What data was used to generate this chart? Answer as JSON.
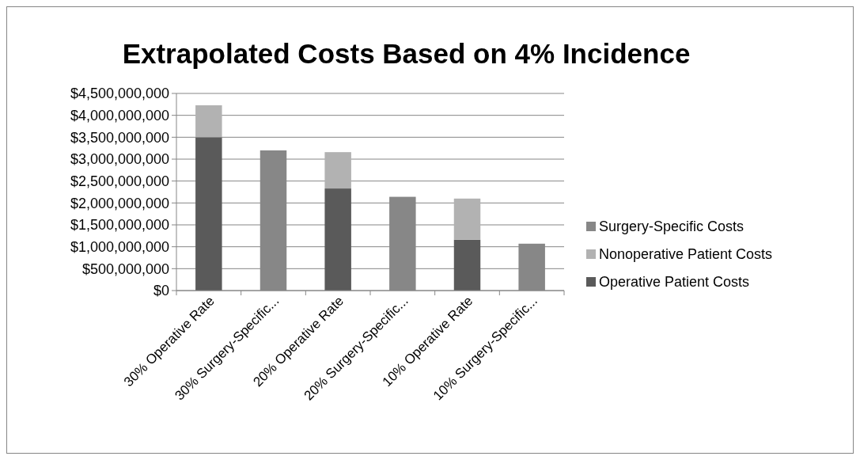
{
  "chart_data": {
    "type": "bar",
    "title": "Extrapolated Costs Based on 4% Incidence",
    "stacked": true,
    "categories": [
      "30% Operative Rate",
      "30% Surgery-Specific...",
      "20% Operative Rate",
      "20% Surgery-Specific...",
      "10% Operative Rate",
      "10% Surgery-Specific..."
    ],
    "series": [
      {
        "name": "Operative Patient Costs",
        "color": "#5a5a5a",
        "values": [
          3500000000,
          null,
          2330000000,
          null,
          1160000000,
          null
        ]
      },
      {
        "name": "Nonoperative Patient Costs",
        "color": "#b2b2b2",
        "values": [
          730000000,
          null,
          830000000,
          null,
          940000000,
          null
        ]
      },
      {
        "name": "Surgery-Specific Costs",
        "color": "#878787",
        "values": [
          null,
          3200000000,
          null,
          2140000000,
          null,
          1070000000
        ]
      }
    ],
    "ylim": [
      0,
      4500000000
    ],
    "yticks": [
      {
        "value": 0,
        "label": "$0"
      },
      {
        "value": 500000000,
        "label": "$500,000,000"
      },
      {
        "value": 1000000000,
        "label": "$1,000,000,000"
      },
      {
        "value": 1500000000,
        "label": "$1,500,000,000"
      },
      {
        "value": 2000000000,
        "label": "$2,000,000,000"
      },
      {
        "value": 2500000000,
        "label": "$2,500,000,000"
      },
      {
        "value": 3000000000,
        "label": "$3,000,000,000"
      },
      {
        "value": 3500000000,
        "label": "$3,500,000,000"
      },
      {
        "value": 4000000000,
        "label": "$4,000,000,000"
      },
      {
        "value": 4500000000,
        "label": "$4,500,000,000"
      }
    ],
    "grid": "y",
    "legend": "right"
  }
}
